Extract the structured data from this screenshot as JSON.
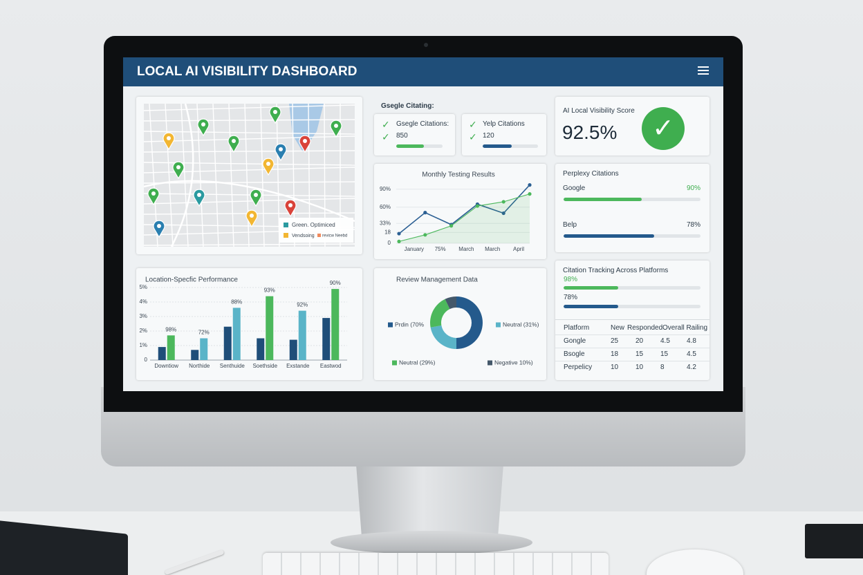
{
  "header": {
    "title": "LOCAL AI VISIBILITY DASHBOARD"
  },
  "map": {
    "legend": [
      "Green. Optimiced",
      "Vendsoing",
      "revicw Neebd"
    ]
  },
  "citations": {
    "title": "Gsegle Citating:",
    "items": [
      {
        "label": "Gsegle Citations:",
        "value": 850
      },
      {
        "label": "Yelp Citations",
        "value": 120
      }
    ]
  },
  "score": {
    "label": "AI Local Visibility Score",
    "value": "92.5%"
  },
  "perplexity": {
    "title": "Perplexy Citations",
    "items": [
      {
        "label": "Google",
        "value": "90%"
      },
      {
        "label": "Belp",
        "value": "78%"
      }
    ]
  },
  "tracking": {
    "title": "Citation Tracking Across Platforms",
    "items": [
      "98%",
      "78%"
    ]
  },
  "table": {
    "header": [
      "Platform",
      "New",
      "Responded",
      "Overall Railing"
    ],
    "rows": [
      [
        "Gongle",
        25,
        20,
        4.5,
        4.8
      ],
      [
        "Bsogle",
        18,
        15,
        15,
        4.5
      ],
      [
        "Perpelicy",
        10,
        10,
        8,
        4.2
      ]
    ]
  },
  "chart_data": [
    {
      "type": "line",
      "title": "Monthly Testing Results",
      "categories": [
        null,
        "January",
        "75%",
        "March",
        "March",
        "April"
      ],
      "series": [
        {
          "color": "#2b5f93",
          "values": [
            16,
            51,
            31,
            65,
            50,
            97
          ]
        },
        {
          "color": "#4cb85c",
          "values": [
            3,
            14,
            29,
            62,
            69,
            82
          ]
        }
      ],
      "ylim": [
        0,
        100
      ],
      "yticks": [
        {
          "value": 90,
          "label": "90%"
        },
        {
          "value": 60,
          "label": "60%"
        },
        {
          "value": 33,
          "label": "33%"
        },
        18,
        0
      ],
      "grid": true
    },
    {
      "type": "bar",
      "title": "Location-Specfic Performance",
      "categories": [
        "Downtiow",
        "Northide",
        "Senthuide",
        "Soethside",
        "Exstande",
        "Eastwod"
      ],
      "series": [
        {
          "color": "#1f4e79",
          "values": [
            0.9,
            0.7,
            2.3,
            1.5,
            1.4,
            2.9
          ]
        },
        {
          "colors": [
            "#4cb85c",
            "#5ab4c8",
            "#5ab4c8",
            "#4cb85c",
            "#5ab4c8",
            "#4cb85c"
          ],
          "values": [
            1.7,
            1.5,
            3.6,
            4.4,
            3.4,
            4.9
          ]
        }
      ],
      "annotations": [
        "98%",
        "72%",
        "88%",
        "93%",
        "92%",
        "90%"
      ],
      "ylim": [
        0,
        5.5
      ],
      "yticks": [
        {
          "value": 5,
          "label": "5%"
        },
        {
          "value": 4,
          "label": "4%"
        },
        {
          "value": 3,
          "label": "3%"
        },
        {
          "value": 2,
          "label": "2%"
        },
        {
          "value": 1,
          "label": "1%"
        },
        0
      ],
      "grid": true
    },
    {
      "type": "pie",
      "title": "Review Management Data",
      "categories": [
        "Prdin (70%",
        "Neutral (31%)",
        "Neutral (29%)",
        "Negative 10%)"
      ],
      "values": [
        70,
        31,
        29,
        10
      ],
      "colors": [
        "#245a8c",
        "#5ab4c8",
        "#4cb85c",
        "#44586a"
      ],
      "donut": true
    }
  ]
}
